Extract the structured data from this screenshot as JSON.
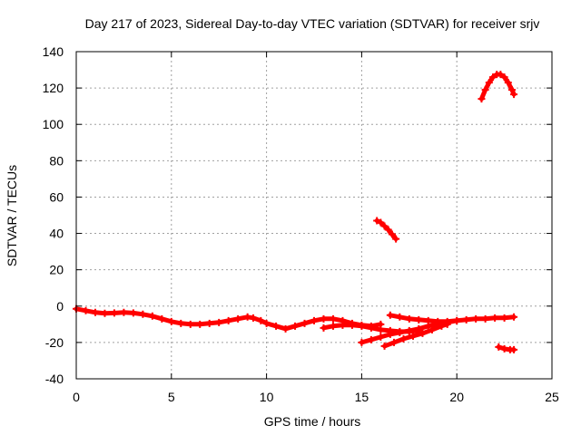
{
  "chart_data": {
    "type": "scatter",
    "title": "Day 217 of 2023, Sidereal Day-to-day VTEC variation (SDTVAR) for receiver srjv",
    "xlabel": "GPS time / hours",
    "ylabel": "SDTVAR / TECUs",
    "xlim": [
      0,
      25
    ],
    "ylim": [
      -40,
      140
    ],
    "xticks": [
      0,
      5,
      10,
      15,
      20,
      25
    ],
    "yticks": [
      -40,
      -20,
      0,
      20,
      40,
      60,
      80,
      100,
      120,
      140
    ],
    "xtick_labels": [
      "0",
      "5",
      "10",
      "15",
      "20",
      "25"
    ],
    "ytick_labels": [
      "-40",
      "-20",
      "0",
      "20",
      "40",
      "60",
      "80",
      "100",
      "120",
      "140"
    ],
    "grid": true,
    "legend": "none",
    "marker_color": "#ff0000",
    "series": [
      {
        "points": [
          [
            0.0,
            -1.5
          ],
          [
            0.5,
            -2.5
          ],
          [
            1.0,
            -3.5
          ],
          [
            1.5,
            -4.0
          ],
          [
            2.0,
            -3.8
          ],
          [
            2.5,
            -3.5
          ],
          [
            3.0,
            -3.8
          ],
          [
            3.5,
            -4.5
          ],
          [
            4.0,
            -5.5
          ],
          [
            4.5,
            -7.0
          ],
          [
            5.0,
            -8.5
          ],
          [
            5.5,
            -9.5
          ],
          [
            6.0,
            -10.0
          ],
          [
            6.5,
            -10.0
          ],
          [
            7.0,
            -9.5
          ],
          [
            7.5,
            -9.0
          ],
          [
            8.0,
            -8.0
          ],
          [
            8.5,
            -7.0
          ],
          [
            9.0,
            -6.0
          ],
          [
            9.3,
            -6.5
          ],
          [
            9.7,
            -8.0
          ],
          [
            10.0,
            -9.5
          ],
          [
            10.5,
            -11.0
          ],
          [
            11.0,
            -12.5
          ],
          [
            11.5,
            -11.0
          ],
          [
            12.0,
            -9.5
          ],
          [
            12.5,
            -8.0
          ],
          [
            13.0,
            -7.0
          ],
          [
            13.5,
            -7.0
          ],
          [
            14.0,
            -8.0
          ],
          [
            14.5,
            -9.5
          ],
          [
            15.0,
            -10.5
          ],
          [
            15.5,
            -11.0
          ],
          [
            16.0,
            -10.0
          ]
        ]
      },
      {
        "points": [
          [
            13.0,
            -12.0
          ],
          [
            13.5,
            -11.0
          ],
          [
            14.0,
            -10.5
          ],
          [
            14.5,
            -10.5
          ],
          [
            15.0,
            -11.0
          ],
          [
            15.5,
            -12.0
          ],
          [
            16.0,
            -13.0
          ],
          [
            16.5,
            -13.5
          ],
          [
            17.0,
            -14.0
          ],
          [
            17.5,
            -14.0
          ],
          [
            18.0,
            -13.5
          ]
        ]
      },
      {
        "points": [
          [
            15.0,
            -20.0
          ],
          [
            15.5,
            -18.5
          ],
          [
            16.0,
            -17.0
          ],
          [
            16.5,
            -15.5
          ],
          [
            17.0,
            -14.5
          ],
          [
            17.5,
            -13.5
          ],
          [
            18.0,
            -12.5
          ],
          [
            18.5,
            -11.0
          ],
          [
            19.0,
            -10.0
          ],
          [
            19.5,
            -9.0
          ],
          [
            20.0,
            -8.0
          ],
          [
            20.5,
            -7.5
          ],
          [
            21.0,
            -7.0
          ],
          [
            21.5,
            -7.0
          ],
          [
            22.0,
            -6.5
          ],
          [
            22.5,
            -6.5
          ],
          [
            23.0,
            -6.0
          ]
        ]
      },
      {
        "points": [
          [
            16.2,
            -22.0
          ],
          [
            16.7,
            -20.0
          ],
          [
            17.2,
            -18.0
          ],
          [
            17.7,
            -16.5
          ],
          [
            18.2,
            -15.0
          ],
          [
            18.7,
            -13.0
          ],
          [
            19.2,
            -11.0
          ],
          [
            19.5,
            -10.0
          ]
        ]
      },
      {
        "points": [
          [
            16.5,
            -5.0
          ],
          [
            17.0,
            -6.0
          ],
          [
            17.5,
            -7.0
          ],
          [
            18.0,
            -7.5
          ],
          [
            18.5,
            -8.0
          ],
          [
            19.0,
            -8.5
          ],
          [
            19.5,
            -8.5
          ],
          [
            20.0,
            -8.0
          ]
        ]
      },
      {
        "points": [
          [
            15.8,
            47.0
          ],
          [
            16.0,
            46.0
          ],
          [
            16.2,
            44.0
          ],
          [
            16.4,
            42.0
          ],
          [
            16.6,
            39.5
          ],
          [
            16.8,
            37.0
          ]
        ]
      },
      {
        "points": [
          [
            21.3,
            114.0
          ],
          [
            21.5,
            119.0
          ],
          [
            21.7,
            123.0
          ],
          [
            21.9,
            126.0
          ],
          [
            22.1,
            127.5
          ],
          [
            22.3,
            127.5
          ],
          [
            22.5,
            126.0
          ],
          [
            22.7,
            123.0
          ],
          [
            22.9,
            119.0
          ],
          [
            23.0,
            116.5
          ]
        ]
      },
      {
        "points": [
          [
            22.2,
            -22.5
          ],
          [
            22.5,
            -23.5
          ],
          [
            22.8,
            -24.0
          ],
          [
            23.0,
            -24.0
          ]
        ]
      }
    ]
  }
}
